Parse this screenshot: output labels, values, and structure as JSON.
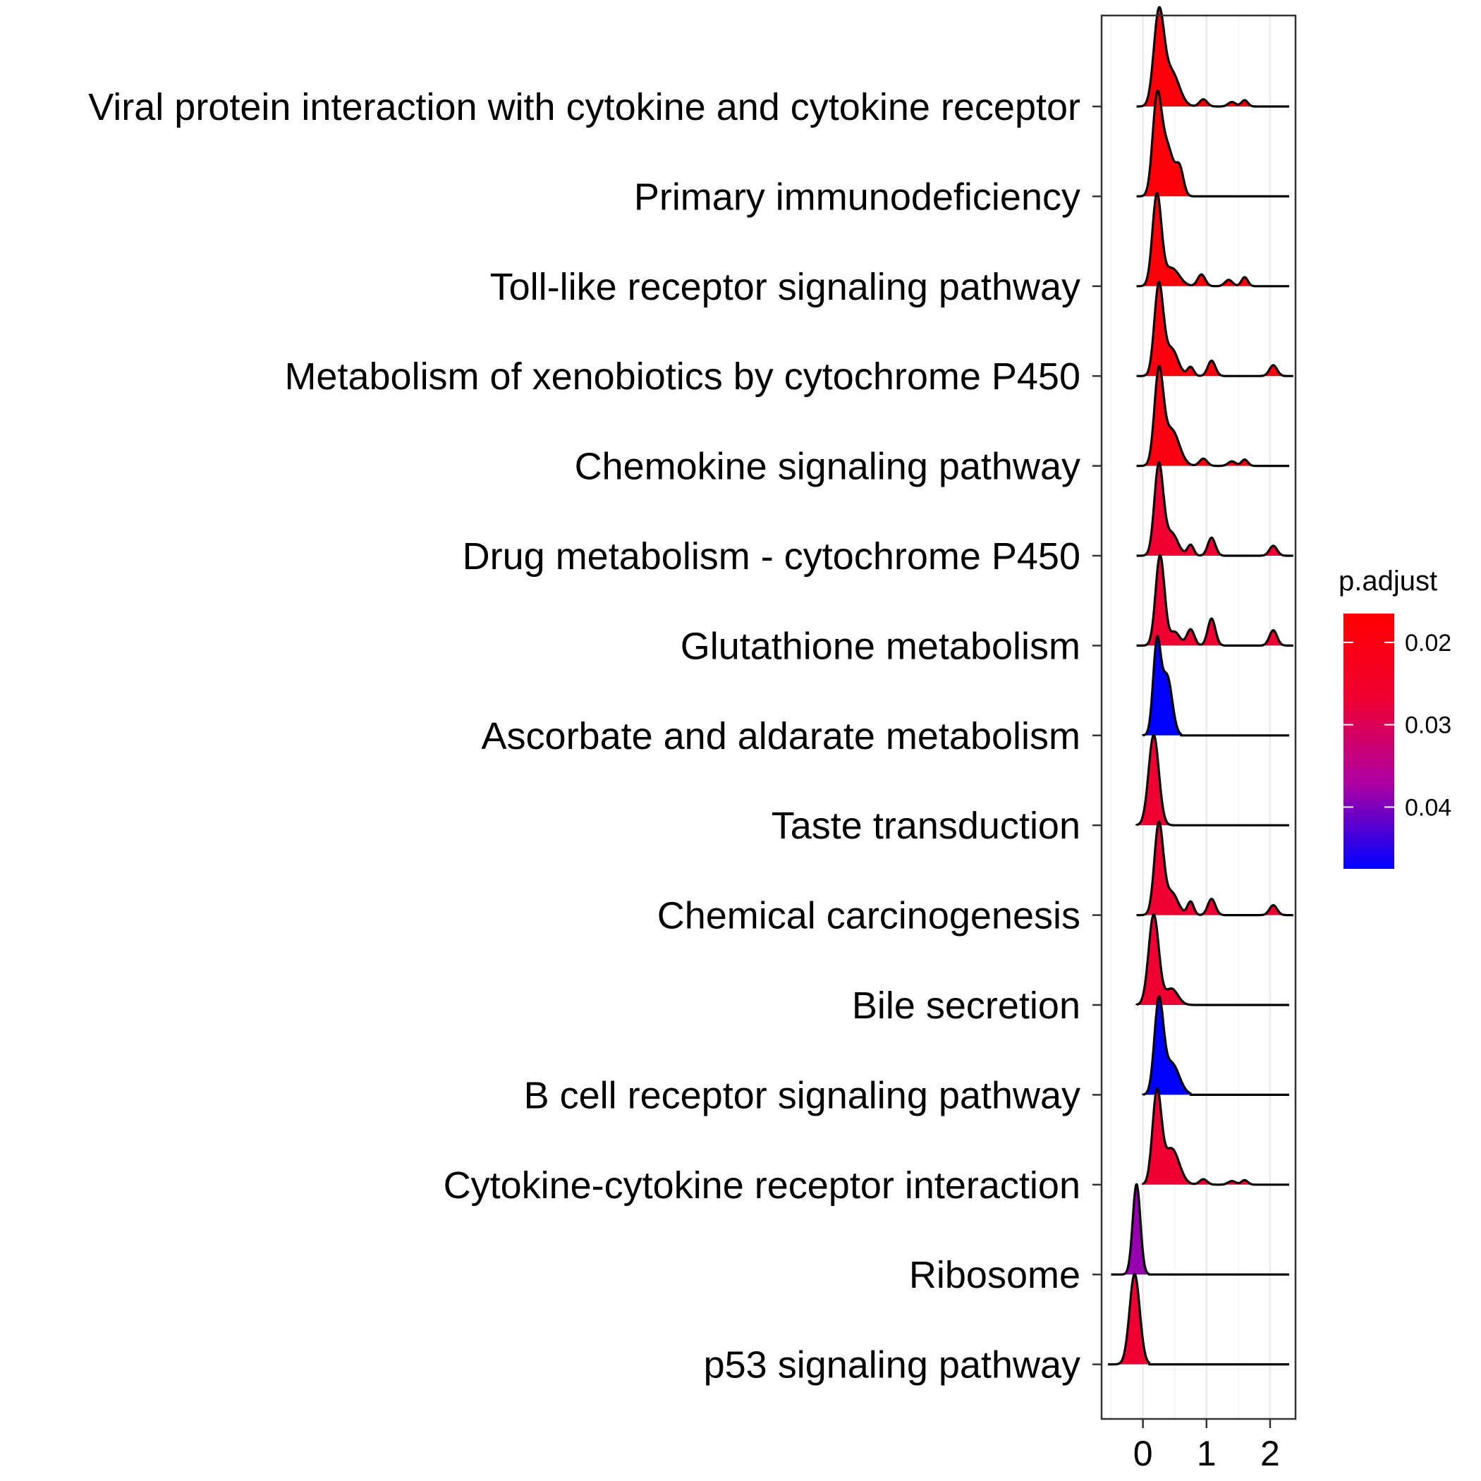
{
  "chart_data": {
    "type": "ridgeline",
    "xlim": [
      -0.65,
      2.4
    ],
    "x_ticks": [
      0,
      1,
      2
    ],
    "x_tick_labels": [
      "0",
      "1",
      "2"
    ],
    "grid": true,
    "legend": {
      "title": "p.adjust",
      "position": "right",
      "range": [
        0.0165,
        0.0475
      ],
      "ticks": [
        0.02,
        0.03,
        0.04
      ],
      "tick_labels": [
        "0.02",
        "0.03",
        "0.04"
      ],
      "low_color": "#FF0000",
      "high_color": "#0000FF"
    },
    "series": [
      {
        "name": "Viral protein interaction with cytokine and cytokine receptor",
        "p_adjust": 0.0185,
        "range": [
          -0.1,
          1.75
        ],
        "peaks": [
          [
            0.25,
            1.0,
            0.08
          ],
          [
            0.45,
            0.38,
            0.12
          ],
          [
            0.95,
            0.08,
            0.06
          ],
          [
            1.4,
            0.05,
            0.06
          ],
          [
            1.6,
            0.07,
            0.05
          ]
        ]
      },
      {
        "name": "Primary immunodeficiency",
        "p_adjust": 0.0185,
        "range": [
          -0.1,
          0.9
        ],
        "peaks": [
          [
            0.22,
            1.0,
            0.07
          ],
          [
            0.38,
            0.55,
            0.1
          ],
          [
            0.58,
            0.28,
            0.06
          ]
        ]
      },
      {
        "name": "Toll-like receptor signaling pathway",
        "p_adjust": 0.0185,
        "range": [
          -0.1,
          1.75
        ],
        "peaks": [
          [
            0.22,
            1.0,
            0.07
          ],
          [
            0.45,
            0.2,
            0.12
          ],
          [
            0.92,
            0.13,
            0.06
          ],
          [
            1.35,
            0.07,
            0.06
          ],
          [
            1.6,
            0.1,
            0.05
          ]
        ]
      },
      {
        "name": "Metabolism of xenobiotics by cytochrome P450",
        "p_adjust": 0.0195,
        "range": [
          -0.1,
          2.35
        ],
        "peaks": [
          [
            0.25,
            1.0,
            0.07
          ],
          [
            0.45,
            0.3,
            0.1
          ],
          [
            0.75,
            0.1,
            0.05
          ],
          [
            1.08,
            0.17,
            0.06
          ],
          [
            2.05,
            0.12,
            0.06
          ]
        ]
      },
      {
        "name": "Chemokine signaling pathway",
        "p_adjust": 0.02,
        "range": [
          -0.1,
          1.75
        ],
        "peaks": [
          [
            0.25,
            1.0,
            0.07
          ],
          [
            0.45,
            0.4,
            0.12
          ],
          [
            0.95,
            0.08,
            0.06
          ],
          [
            1.4,
            0.05,
            0.06
          ],
          [
            1.6,
            0.07,
            0.05
          ]
        ]
      },
      {
        "name": "Drug metabolism - cytochrome P450",
        "p_adjust": 0.027,
        "range": [
          -0.1,
          2.35
        ],
        "peaks": [
          [
            0.25,
            1.0,
            0.07
          ],
          [
            0.45,
            0.25,
            0.1
          ],
          [
            0.75,
            0.12,
            0.05
          ],
          [
            1.08,
            0.2,
            0.06
          ],
          [
            2.05,
            0.11,
            0.06
          ]
        ]
      },
      {
        "name": "Glutathione metabolism",
        "p_adjust": 0.027,
        "range": [
          -0.1,
          2.35
        ],
        "peaks": [
          [
            0.27,
            1.0,
            0.07
          ],
          [
            0.5,
            0.15,
            0.08
          ],
          [
            0.75,
            0.18,
            0.06
          ],
          [
            1.08,
            0.3,
            0.06
          ],
          [
            2.05,
            0.17,
            0.06
          ]
        ]
      },
      {
        "name": "Ascorbate and aldarate metabolism",
        "p_adjust": 0.0475,
        "range": [
          0.0,
          0.6
        ],
        "peaks": [
          [
            0.22,
            1.0,
            0.06
          ],
          [
            0.38,
            0.65,
            0.08
          ]
        ]
      },
      {
        "name": "Taste transduction",
        "p_adjust": 0.027,
        "range": [
          -0.1,
          0.55
        ],
        "peaks": [
          [
            0.17,
            1.0,
            0.08
          ]
        ]
      },
      {
        "name": "Chemical carcinogenesis",
        "p_adjust": 0.027,
        "range": [
          -0.1,
          2.35
        ],
        "peaks": [
          [
            0.25,
            1.0,
            0.07
          ],
          [
            0.45,
            0.25,
            0.1
          ],
          [
            0.75,
            0.15,
            0.05
          ],
          [
            1.08,
            0.18,
            0.06
          ],
          [
            2.05,
            0.11,
            0.06
          ]
        ]
      },
      {
        "name": "Bile secretion",
        "p_adjust": 0.027,
        "range": [
          -0.1,
          0.8
        ],
        "peaks": [
          [
            0.17,
            1.0,
            0.08
          ],
          [
            0.45,
            0.18,
            0.1
          ]
        ]
      },
      {
        "name": "B cell receptor signaling pathway",
        "p_adjust": 0.0475,
        "range": [
          0.0,
          0.75
        ],
        "peaks": [
          [
            0.25,
            1.0,
            0.07
          ],
          [
            0.45,
            0.35,
            0.12
          ]
        ]
      },
      {
        "name": "Cytokine-cytokine receptor interaction",
        "p_adjust": 0.027,
        "range": [
          0.0,
          1.75
        ],
        "peaks": [
          [
            0.22,
            1.0,
            0.07
          ],
          [
            0.45,
            0.4,
            0.12
          ],
          [
            0.95,
            0.06,
            0.06
          ],
          [
            1.4,
            0.04,
            0.06
          ],
          [
            1.6,
            0.05,
            0.05
          ]
        ]
      },
      {
        "name": "Ribosome",
        "p_adjust": 0.0385,
        "range": [
          -0.5,
          0.1
        ],
        "peaks": [
          [
            -0.1,
            1.0,
            0.06
          ]
        ]
      },
      {
        "name": "p53 signaling pathway",
        "p_adjust": 0.027,
        "range": [
          -0.55,
          0.1
        ],
        "peaks": [
          [
            -0.13,
            1.0,
            0.08
          ]
        ]
      }
    ]
  }
}
